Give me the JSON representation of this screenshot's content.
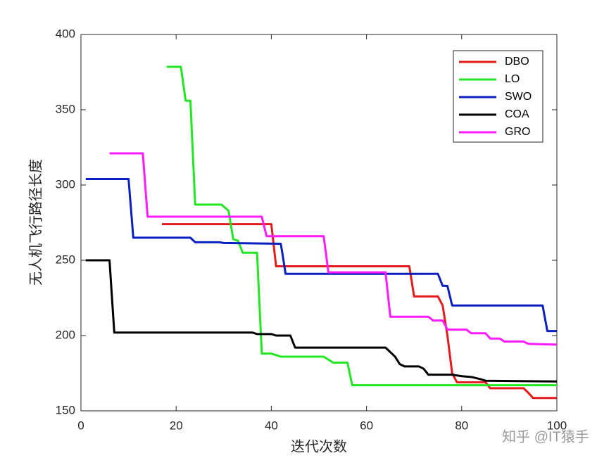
{
  "chart_data": {
    "type": "line",
    "xlabel": "迭代次数",
    "ylabel": "无人机飞行路径长度",
    "xlim": [
      0,
      100
    ],
    "xticks": [
      0,
      20,
      40,
      60,
      80,
      100
    ],
    "ylim": [
      150,
      400
    ],
    "yticks": [
      150,
      200,
      250,
      300,
      350,
      400
    ],
    "grid": false,
    "legend": "upper right",
    "series": [
      {
        "name": "DBO",
        "color": "#e41a1c",
        "x": [
          17,
          40,
          41,
          69,
          70,
          75,
          76,
          77,
          78,
          79,
          85,
          86,
          93,
          94,
          95,
          100
        ],
        "values": [
          274,
          274,
          246,
          246,
          226,
          226,
          220,
          200,
          175,
          169,
          169,
          165,
          165,
          162,
          158.5,
          158.5
        ]
      },
      {
        "name": "LO",
        "color": "#22e622",
        "x": [
          18,
          21,
          22,
          23,
          24,
          29.5,
          31,
          32,
          33,
          34,
          37,
          38,
          40,
          42,
          51,
          52,
          53,
          56,
          57,
          100
        ],
        "values": [
          378.5,
          378.5,
          356,
          356,
          287,
          287,
          283,
          264,
          263,
          255,
          255,
          188,
          188,
          186,
          186,
          184,
          182,
          182,
          167,
          167
        ]
      },
      {
        "name": "SWO",
        "color": "#0a1fbf",
        "x": [
          1,
          10,
          11,
          23,
          24,
          29,
          30,
          42,
          43,
          75,
          76,
          77,
          78,
          97,
          98,
          100
        ],
        "values": [
          304,
          304,
          265,
          265,
          262,
          262,
          261.5,
          261,
          241,
          241,
          233,
          233,
          220,
          220,
          203,
          203
        ]
      },
      {
        "name": "COA",
        "color": "#000000",
        "x": [
          1,
          6,
          7,
          36,
          37,
          40,
          41,
          44,
          45,
          64,
          66,
          67,
          68,
          71,
          72,
          73,
          78,
          80,
          82,
          84,
          85,
          100
        ],
        "values": [
          250,
          250,
          202,
          202,
          201,
          201,
          200,
          200,
          192,
          192,
          186,
          181,
          179.5,
          179.5,
          178,
          174,
          174,
          173,
          172.5,
          171,
          170,
          169.5
        ]
      },
      {
        "name": "GRO",
        "color": "#ff1aff",
        "x": [
          6,
          13,
          14,
          38,
          39,
          51,
          52,
          64,
          65,
          73,
          74,
          76,
          77,
          81,
          82,
          85,
          86,
          88,
          89,
          93,
          94,
          100
        ],
        "values": [
          321,
          321,
          279,
          279,
          266,
          266,
          242,
          242,
          212.5,
          212.5,
          210,
          210,
          204,
          204,
          201.5,
          201.5,
          198,
          198,
          196,
          196,
          194.5,
          194
        ]
      }
    ],
    "watermark": "知乎 @IT猿手"
  }
}
